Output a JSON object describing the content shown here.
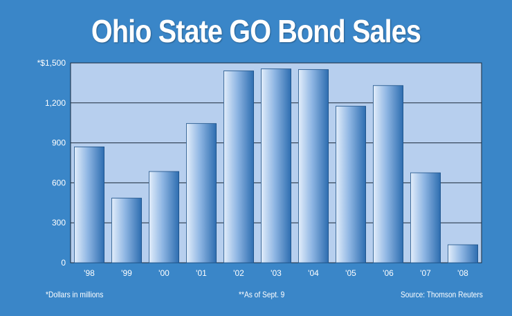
{
  "chart_data": {
    "type": "bar",
    "title": "Ohio State GO Bond Sales",
    "categories": [
      "'98",
      "'99",
      "'00",
      "'01",
      "'02",
      "'03",
      "'04",
      "'05",
      "'06",
      "'07",
      "'08"
    ],
    "values": [
      870,
      485,
      685,
      1045,
      1440,
      1455,
      1450,
      1175,
      1330,
      675,
      135
    ],
    "ylim": [
      0,
      1500
    ],
    "yticks": [
      0,
      300,
      600,
      900,
      1200,
      1500
    ],
    "ytick_labels": [
      "0",
      "300",
      "600",
      "900",
      "1,200",
      "*$1,500"
    ],
    "grid": true,
    "xlabel": "",
    "ylabel": ""
  },
  "notes": {
    "units": "*Dollars in millions",
    "asof": "**As of Sept. 9",
    "source": "Source: Thomson Reuters"
  },
  "colors": {
    "background": "#3a86c8",
    "plot_area": "#b7cfee",
    "bar_light": "#dbe8f8",
    "bar_dark": "#2f6fb3",
    "gridline": "#1b2a3a"
  }
}
